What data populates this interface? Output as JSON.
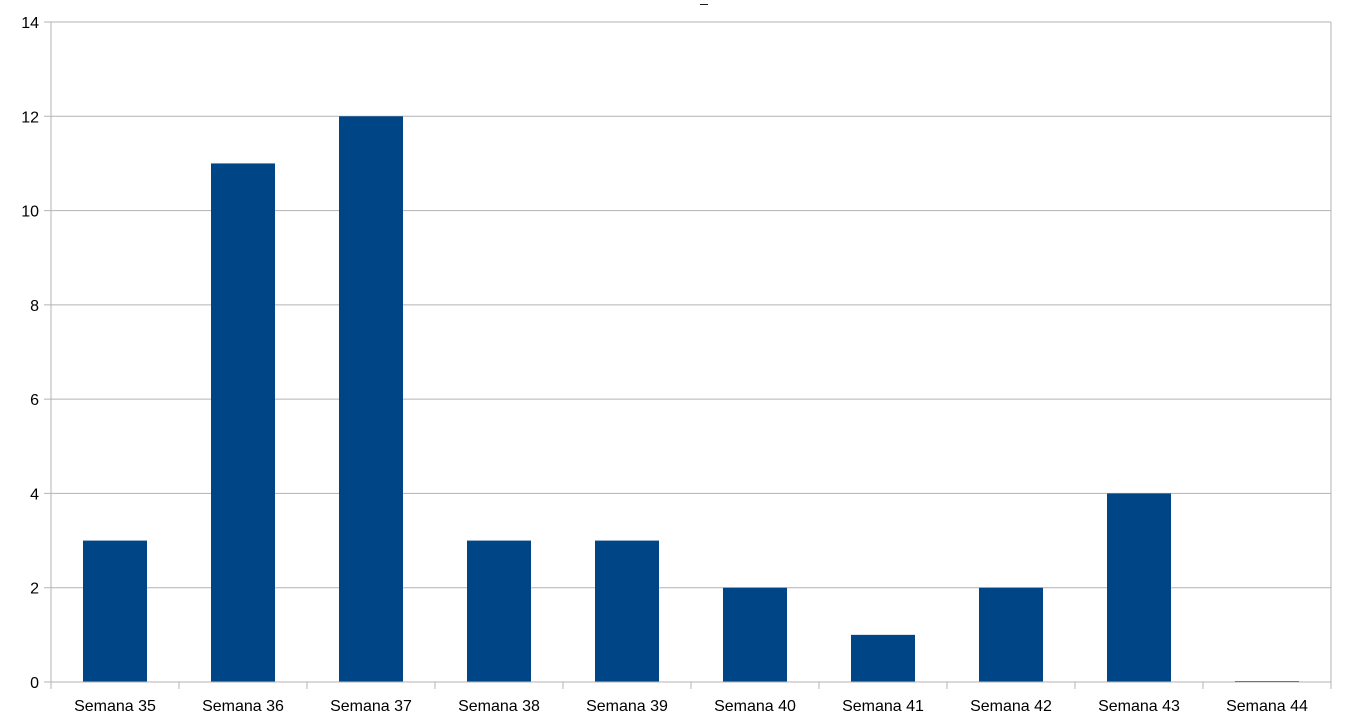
{
  "chart_data": {
    "type": "bar",
    "title": "_",
    "xlabel": "_",
    "ylabel": "",
    "categories": [
      "Semana 35",
      "Semana 36",
      "Semana 37",
      "Semana 38",
      "Semana 39",
      "Semana 40",
      "Semana 41",
      "Semana 42",
      "Semana 43",
      "Semana 44"
    ],
    "series": [
      {
        "values": [
          3,
          11,
          12,
          3,
          3,
          2,
          1,
          2,
          4,
          0
        ]
      }
    ],
    "ylim": [
      0,
      14
    ],
    "yticks": [
      "0",
      "2",
      "4",
      "6",
      "8",
      "10",
      "12",
      "14"
    ],
    "grid": true,
    "legend": "none",
    "colors": {
      "bar": "#004586",
      "grid": "#b3b3b3",
      "axis": "#b3b3b3"
    }
  }
}
